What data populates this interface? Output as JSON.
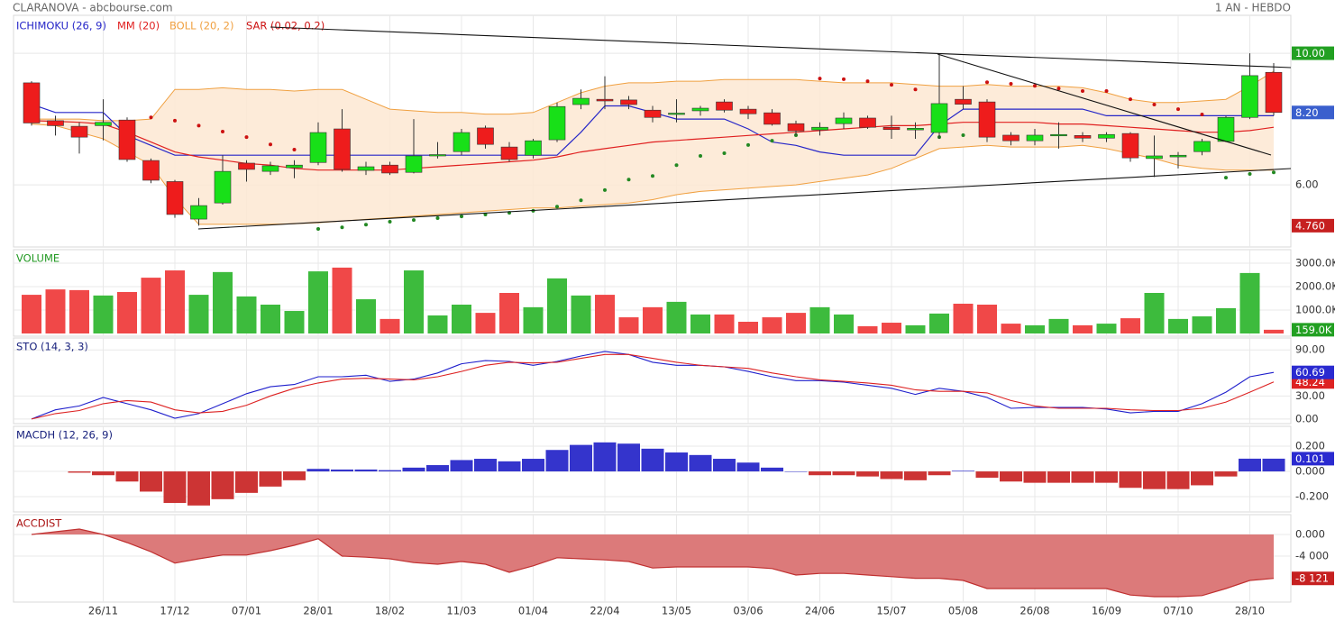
{
  "header": {
    "title": "CLARANOVA - abcbourse.com",
    "period": "1 AN - HEBDO"
  },
  "chart_data": [
    {
      "type": "candlestick",
      "categories": [
        null,
        null,
        null,
        "26/11",
        null,
        null,
        "17/12",
        null,
        null,
        "07/01",
        null,
        null,
        "28/01",
        null,
        null,
        "18/02",
        null,
        null,
        "11/03",
        null,
        null,
        "01/04",
        null,
        null,
        "22/04",
        null,
        null,
        "13/05",
        null,
        null,
        "03/06",
        null,
        null,
        "24/06",
        null,
        null,
        "15/07",
        null,
        null,
        "05/08",
        null,
        null,
        "26/08",
        null,
        null,
        "16/09",
        null,
        null,
        "07/10",
        null,
        null,
        "28/10",
        null
      ],
      "open": [
        9.1,
        7.95,
        7.78,
        7.8,
        7.97,
        6.74,
        6.1,
        4.96,
        5.45,
        6.66,
        6.41,
        6.52,
        6.68,
        7.7,
        6.44,
        6.6,
        6.38,
        6.88,
        7.01,
        7.73,
        7.15,
        6.9,
        7.37,
        8.44,
        8.6,
        8.58,
        8.27,
        8.15,
        8.25,
        8.52,
        8.3,
        8.19,
        7.86,
        7.67,
        7.86,
        8.03,
        7.75,
        7.67,
        7.59,
        8.6,
        8.52,
        7.51,
        7.34,
        7.51,
        7.5,
        7.42,
        7.56,
        6.8,
        6.85,
        7.01,
        7.32,
        8.05,
        9.42
      ],
      "high": [
        9.15,
        8.1,
        7.9,
        8.6,
        8.05,
        6.8,
        6.15,
        5.6,
        6.9,
        6.75,
        6.7,
        6.75,
        7.9,
        8.3,
        6.7,
        6.7,
        8.0,
        7.3,
        7.7,
        7.8,
        7.3,
        7.4,
        8.5,
        8.9,
        9.3,
        8.7,
        8.4,
        8.6,
        8.4,
        8.6,
        8.4,
        8.3,
        7.95,
        7.9,
        8.2,
        8.1,
        8.1,
        7.9,
        10.0,
        9.0,
        8.6,
        7.6,
        7.7,
        7.9,
        7.6,
        7.6,
        7.6,
        7.5,
        7.0,
        7.4,
        8.1,
        10.0,
        9.7
      ],
      "low": [
        7.8,
        7.5,
        6.95,
        7.35,
        6.7,
        6.05,
        5.0,
        4.76,
        5.4,
        6.1,
        6.3,
        6.2,
        6.6,
        6.4,
        6.3,
        6.3,
        6.35,
        6.8,
        6.9,
        7.1,
        6.7,
        6.8,
        7.3,
        8.3,
        8.3,
        8.3,
        7.9,
        7.9,
        8.1,
        8.2,
        8.0,
        7.8,
        7.5,
        7.5,
        7.7,
        7.7,
        7.4,
        7.4,
        7.4,
        8.3,
        7.3,
        7.2,
        7.2,
        7.1,
        7.3,
        7.3,
        6.7,
        6.24,
        6.5,
        6.9,
        7.3,
        8.0,
        8.1
      ],
      "close": [
        7.88,
        7.8,
        7.45,
        7.9,
        6.77,
        6.14,
        5.1,
        5.37,
        6.41,
        6.47,
        6.58,
        6.6,
        7.59,
        6.47,
        6.55,
        6.36,
        6.88,
        6.92,
        7.59,
        7.23,
        6.77,
        7.34,
        8.38,
        8.63,
        8.55,
        8.44,
        8.05,
        8.18,
        8.33,
        8.27,
        8.16,
        7.84,
        7.64,
        7.75,
        8.03,
        7.75,
        7.68,
        7.72,
        8.47,
        8.45,
        7.45,
        7.34,
        7.51,
        7.53,
        7.42,
        7.53,
        6.82,
        6.88,
        6.9,
        7.32,
        8.05,
        9.32,
        8.2
      ],
      "up_color": "#18e018",
      "down_color": "#ee1c1c",
      "ylim": [
        4.14,
        11.07
      ],
      "yticks": [
        {
          "value": 6,
          "label": "6.00"
        },
        {
          "value": 10,
          "label": "10.00"
        }
      ],
      "grid": true,
      "series": [
        {
          "name": "ICHIMOKU (26, 9)",
          "color": "#2626c8",
          "values": [
            8.45,
            8.2,
            8.2,
            8.2,
            7.5,
            7.2,
            6.9,
            6.9,
            6.9,
            6.9,
            6.9,
            6.9,
            6.9,
            6.9,
            6.9,
            6.9,
            6.9,
            6.9,
            6.9,
            6.9,
            6.9,
            6.9,
            6.9,
            7.6,
            8.4,
            8.4,
            8.2,
            8.0,
            8.0,
            8.0,
            7.7,
            7.3,
            7.2,
            7.0,
            6.9,
            6.9,
            6.9,
            6.9,
            7.8,
            8.3,
            8.3,
            8.3,
            8.3,
            8.3,
            8.3,
            8.1,
            8.1,
            8.1,
            8.1,
            8.1,
            8.1,
            8.1,
            8.1
          ]
        },
        {
          "name": "MM (20)",
          "color": "#e02020",
          "values": [
            7.95,
            7.93,
            7.9,
            7.85,
            7.6,
            7.3,
            7.0,
            6.85,
            6.75,
            6.65,
            6.6,
            6.5,
            6.45,
            6.45,
            6.45,
            6.45,
            6.5,
            6.55,
            6.6,
            6.65,
            6.7,
            6.75,
            6.85,
            7.0,
            7.1,
            7.2,
            7.3,
            7.35,
            7.4,
            7.45,
            7.5,
            7.55,
            7.6,
            7.65,
            7.7,
            7.75,
            7.8,
            7.8,
            7.85,
            7.9,
            7.9,
            7.9,
            7.9,
            7.85,
            7.85,
            7.8,
            7.75,
            7.7,
            7.65,
            7.6,
            7.6,
            7.65,
            7.75
          ]
        },
        {
          "name": "BOLL (20, 2)",
          "color": "#f0a040",
          "fill": "#fde8d2",
          "upper": [
            8.0,
            8.0,
            8.0,
            7.95,
            7.95,
            8.0,
            8.9,
            8.9,
            8.95,
            8.9,
            8.9,
            8.85,
            8.9,
            8.9,
            8.6,
            8.3,
            8.25,
            8.2,
            8.2,
            8.15,
            8.15,
            8.2,
            8.5,
            8.8,
            9.0,
            9.1,
            9.1,
            9.15,
            9.15,
            9.2,
            9.2,
            9.2,
            9.2,
            9.15,
            9.1,
            9.1,
            9.1,
            9.05,
            9.0,
            9.0,
            9.05,
            9.0,
            9.0,
            9.0,
            8.95,
            8.8,
            8.6,
            8.5,
            8.5,
            8.55,
            8.6,
            9.0,
            9.45
          ],
          "lower": [
            7.85,
            7.8,
            7.6,
            7.4,
            7.0,
            6.6,
            5.6,
            4.8,
            4.8,
            4.8,
            4.8,
            4.82,
            4.85,
            4.9,
            4.95,
            5.0,
            5.05,
            5.1,
            5.15,
            5.2,
            5.25,
            5.3,
            5.3,
            5.35,
            5.4,
            5.45,
            5.55,
            5.7,
            5.8,
            5.85,
            5.9,
            5.95,
            6.0,
            6.1,
            6.2,
            6.3,
            6.5,
            6.8,
            7.1,
            7.15,
            7.2,
            7.15,
            7.15,
            7.15,
            7.2,
            7.1,
            6.95,
            6.8,
            6.6,
            6.5,
            6.45,
            6.45,
            6.45
          ]
        },
        {
          "name": "SAR (0.02, 0.2)",
          "color": "#cc1111",
          "color_below": "#228822",
          "style": "dots",
          "values": [
            null,
            null,
            null,
            null,
            null,
            8.05,
            7.95,
            7.8,
            7.62,
            7.45,
            7.23,
            7.07,
            4.66,
            4.71,
            4.79,
            4.88,
            4.93,
            4.99,
            5.04,
            5.1,
            5.15,
            5.21,
            5.34,
            5.53,
            5.84,
            6.16,
            6.27,
            6.6,
            6.88,
            6.96,
            7.21,
            7.34,
            7.51,
            9.23,
            9.21,
            9.15,
            9.04,
            8.9,
            7.45,
            7.51,
            9.12,
            9.07,
            9.01,
            8.93,
            8.85,
            8.85,
            8.6,
            8.44,
            8.3,
            8.14,
            6.22,
            6.33,
            6.38
          ]
        }
      ],
      "markers": [
        {
          "value": 10,
          "label": "10.00",
          "color": "#22a022"
        },
        {
          "value": 8.2,
          "label": "8.20",
          "color": "#3a5fcd"
        },
        {
          "value": 4.76,
          "label": "4.760",
          "color": "#c62020"
        }
      ]
    },
    {
      "type": "bar",
      "title": "VOLUME",
      "title_color": "#229922",
      "color_by": "close",
      "up_color": "#3dbb3d",
      "down_color": "#f04848",
      "values": [
        1650000,
        1880000,
        1850000,
        1620000,
        1770000,
        2380000,
        2690000,
        1650000,
        2620000,
        1580000,
        1230000,
        960000,
        2650000,
        2810000,
        1460000,
        620000,
        2690000,
        770000,
        1230000,
        880000,
        1730000,
        1120000,
        2350000,
        1620000,
        1650000,
        690000,
        1120000,
        1350000,
        810000,
        810000,
        500000,
        690000,
        880000,
        1120000,
        810000,
        310000,
        460000,
        350000,
        850000,
        1270000,
        1230000,
        420000,
        350000,
        620000,
        350000,
        420000,
        650000,
        1730000,
        620000,
        730000,
        1080000,
        2580000,
        159000
      ],
      "ylim": [
        0,
        3460000
      ],
      "yticks": [
        {
          "value": 1000000,
          "label": "1000.0K"
        },
        {
          "value": 2000000,
          "label": "2000.0K"
        },
        {
          "value": 3000000,
          "label": "3000.0K"
        }
      ],
      "grid": true,
      "markers": [
        {
          "value": 159000,
          "label": "159.0K",
          "color": "#22a022"
        }
      ]
    },
    {
      "type": "line",
      "title": "STO (14, 3, 3)",
      "title_color": "#1a237e",
      "series": [
        {
          "color": "#1f1fcc",
          "values": [
            0,
            12,
            17,
            28,
            20,
            12,
            1,
            7,
            20,
            33,
            42,
            45,
            55,
            55,
            57,
            49,
            52,
            60,
            72,
            76,
            75,
            70,
            75,
            82,
            88,
            84,
            74,
            70,
            70,
            68,
            62,
            55,
            50,
            50,
            48,
            44,
            40,
            32,
            40,
            36,
            28,
            14,
            15,
            15,
            15,
            13,
            8,
            10,
            10,
            20,
            35,
            55,
            60.69
          ]
        },
        {
          "color": "#dd2222",
          "values": [
            0,
            7,
            11,
            20,
            24,
            22,
            12,
            8,
            10,
            18,
            30,
            40,
            47,
            52,
            53,
            52,
            51,
            55,
            62,
            70,
            74,
            73,
            74,
            79,
            84,
            84,
            79,
            74,
            70,
            68,
            66,
            60,
            55,
            51,
            49,
            47,
            44,
            38,
            36,
            36,
            34,
            24,
            17,
            14,
            14,
            14,
            12,
            11,
            11,
            14,
            22,
            35,
            48.24
          ]
        }
      ],
      "ylim": [
        -6,
        102
      ],
      "yticks": [
        {
          "value": 0,
          "label": "0.00"
        },
        {
          "value": 30,
          "label": "30.00"
        },
        {
          "value": 90,
          "label": "90.00"
        }
      ],
      "grid": true,
      "markers": [
        {
          "value": 48.24,
          "label": "48.24",
          "color": "#dd2222"
        },
        {
          "value": 60.69,
          "label": "60.69",
          "color": "#2a2ad0"
        }
      ]
    },
    {
      "type": "bar",
      "title": "MACDH (12, 26, 9)",
      "title_color": "#1a237e",
      "pos_color": "#3434cc",
      "neg_color": "#cc3434",
      "values": [
        null,
        null,
        -0.01,
        -0.03,
        -0.08,
        -0.16,
        -0.25,
        -0.27,
        -0.22,
        -0.17,
        -0.12,
        -0.07,
        0.02,
        0.015,
        0.015,
        0.01,
        0.03,
        0.05,
        0.09,
        0.1,
        0.08,
        0.1,
        0.17,
        0.21,
        0.23,
        0.22,
        0.18,
        0.15,
        0.13,
        0.1,
        0.07,
        0.03,
        0,
        -0.03,
        -0.03,
        -0.04,
        -0.06,
        -0.07,
        -0.03,
        0.005,
        -0.05,
        -0.08,
        -0.09,
        -0.09,
        -0.09,
        -0.09,
        -0.13,
        -0.14,
        -0.14,
        -0.11,
        -0.04,
        0.101,
        0.101
      ],
      "ylim": [
        -0.321,
        0.343
      ],
      "yticks": [
        {
          "value": 0.2,
          "label": "0.200"
        },
        {
          "value": 0,
          "label": "0.000"
        },
        {
          "value": -0.2,
          "label": "-0.200"
        }
      ],
      "grid": true,
      "markers": [
        {
          "value": 0.101,
          "label": "0.101",
          "color": "#2a2ad0"
        }
      ]
    },
    {
      "type": "area",
      "title": "ACCDIST",
      "title_color": "#aa1111",
      "color": "#c03030",
      "fill": "#dc7a7a",
      "values": [
        0,
        500,
        1000,
        0,
        -1500,
        -3200,
        -5300,
        -4500,
        -3800,
        -3800,
        -3000,
        -2000,
        -800,
        -4000,
        -4200,
        -4500,
        -5200,
        -5500,
        -5000,
        -5500,
        -7000,
        -5800,
        -4300,
        -4500,
        -4700,
        -5000,
        -6200,
        -6000,
        -6000,
        -6000,
        -6000,
        -6300,
        -7500,
        -7200,
        -7200,
        -7500,
        -7800,
        -8100,
        -8100,
        -8500,
        -10000,
        -10000,
        -10000,
        -10000,
        -10000,
        -10000,
        -11200,
        -11500,
        -11500,
        -11300,
        -10000,
        -8500,
        -8121
      ],
      "ylim": [
        -12500,
        3500
      ],
      "yticks": [
        {
          "value": 0,
          "label": "0.000"
        },
        {
          "value": -4000,
          "label": "-4 000"
        }
      ],
      "grid": true,
      "markers": [
        {
          "value": -8121,
          "label": "-8 121",
          "color": "#c62020"
        }
      ]
    }
  ]
}
